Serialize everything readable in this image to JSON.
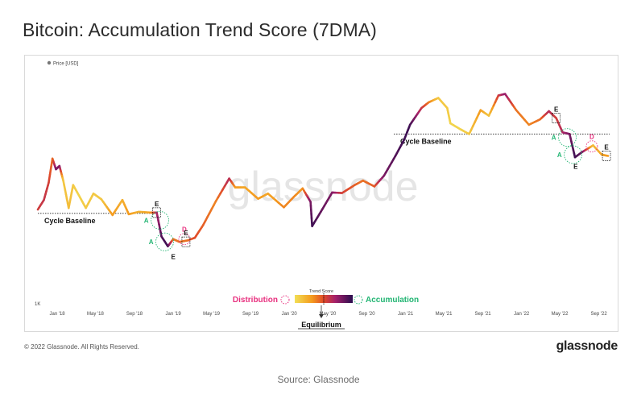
{
  "title": "Bitcoin: Accumulation Trend Score (7DMA)",
  "copyright": "© 2022 Glassnode. All Rights Reserved.",
  "brand": "glassnode",
  "source": "Source: Glassnode",
  "colors": {
    "accumulation": "#22b573",
    "distribution": "#e8317f",
    "scale": [
      "#e8c63a",
      "#f49a1e",
      "#e25a2a",
      "#a4206b",
      "#5a1270",
      "#2a0d4e"
    ]
  },
  "chart_data": {
    "type": "line",
    "title": "Bitcoin: Accumulation Trend Score (7DMA)",
    "legend": {
      "label": "Price [USD]",
      "marker_color": "#777777",
      "position": "top-left"
    },
    "x_tick_labels": [
      "Jan '18",
      "May '18",
      "Sep '18",
      "Jan '19",
      "May '19",
      "Sep '19",
      "Jan '20",
      "May '20",
      "Sep '20",
      "Jan '21",
      "May '21",
      "Sep '21",
      "Jan '22",
      "May '22",
      "Sep '22"
    ],
    "y_tick_labels": [
      "1K"
    ],
    "y_scale": "log",
    "xlim": [
      "2017-11-01",
      "2022-10-10"
    ],
    "ylim": [
      1000,
      90000
    ],
    "grid": false,
    "series": [
      {
        "name": "Price [USD]",
        "points": [
          [
            "2017-11-01",
            6800,
            0.55
          ],
          [
            "2017-11-20",
            8200,
            0.6
          ],
          [
            "2017-12-05",
            11500,
            0.55
          ],
          [
            "2017-12-17",
            18500,
            0.4
          ],
          [
            "2017-12-28",
            15000,
            0.8
          ],
          [
            "2018-01-08",
            16000,
            0.8
          ],
          [
            "2018-01-20",
            12000,
            0.1
          ],
          [
            "2018-02-06",
            7000,
            0.15
          ],
          [
            "2018-02-20",
            11000,
            0.1
          ],
          [
            "2018-03-10",
            9000,
            0.05
          ],
          [
            "2018-04-01",
            7000,
            0.1
          ],
          [
            "2018-04-25",
            9300,
            0.1
          ],
          [
            "2018-05-20",
            8300,
            0.1
          ],
          [
            "2018-06-24",
            6100,
            0.3
          ],
          [
            "2018-07-25",
            8200,
            0.2
          ],
          [
            "2018-08-14",
            6200,
            0.3
          ],
          [
            "2018-09-15",
            6500,
            0.2
          ],
          [
            "2018-10-20",
            6400,
            0.25
          ],
          [
            "2018-11-10",
            6400,
            0.65
          ],
          [
            "2018-11-25",
            4000,
            0.9
          ],
          [
            "2018-12-15",
            3300,
            0.95
          ],
          [
            "2019-01-01",
            3800,
            0.4
          ],
          [
            "2019-01-20",
            3600,
            0.4
          ],
          [
            "2019-02-15",
            3700,
            0.4
          ],
          [
            "2019-03-10",
            3900,
            0.5
          ],
          [
            "2019-04-05",
            5000,
            0.45
          ],
          [
            "2019-05-15",
            8000,
            0.35
          ],
          [
            "2019-06-26",
            12500,
            0.65
          ],
          [
            "2019-07-15",
            10500,
            0.3
          ],
          [
            "2019-08-15",
            10500,
            0.25
          ],
          [
            "2019-09-25",
            8400,
            0.3
          ],
          [
            "2019-10-26",
            9300,
            0.25
          ],
          [
            "2019-12-15",
            7100,
            0.35
          ],
          [
            "2020-01-15",
            8700,
            0.35
          ],
          [
            "2020-02-12",
            10300,
            0.3
          ],
          [
            "2020-03-08",
            7900,
            0.8
          ],
          [
            "2020-03-13",
            4900,
            0.95
          ],
          [
            "2020-04-15",
            6900,
            0.85
          ],
          [
            "2020-05-15",
            9500,
            0.8
          ],
          [
            "2020-06-15",
            9400,
            0.55
          ],
          [
            "2020-07-25",
            11000,
            0.45
          ],
          [
            "2020-08-20",
            12000,
            0.4
          ],
          [
            "2020-09-25",
            10700,
            0.45
          ],
          [
            "2020-10-25",
            13200,
            0.8
          ],
          [
            "2020-11-30",
            19500,
            0.9
          ],
          [
            "2020-12-28",
            27000,
            0.95
          ],
          [
            "2021-01-15",
            36000,
            0.95
          ],
          [
            "2021-02-20",
            50000,
            0.6
          ],
          [
            "2021-03-15",
            56000,
            0.4
          ],
          [
            "2021-04-14",
            61000,
            0.1
          ],
          [
            "2021-05-12",
            50000,
            0.1
          ],
          [
            "2021-05-22",
            37000,
            0.05
          ],
          [
            "2021-06-22",
            33000,
            0.05
          ],
          [
            "2021-07-20",
            30000,
            0.1
          ],
          [
            "2021-08-25",
            48000,
            0.3
          ],
          [
            "2021-09-20",
            43000,
            0.1
          ],
          [
            "2021-10-20",
            64000,
            0.55
          ],
          [
            "2021-11-10",
            66000,
            0.75
          ],
          [
            "2021-12-15",
            48000,
            0.4
          ],
          [
            "2022-01-24",
            36000,
            0.35
          ],
          [
            "2022-02-28",
            40000,
            0.4
          ],
          [
            "2022-03-28",
            47000,
            0.65
          ],
          [
            "2022-04-20",
            41000,
            0.55
          ],
          [
            "2022-05-10",
            31000,
            0.65
          ],
          [
            "2022-06-01",
            30000,
            0.8
          ],
          [
            "2022-06-18",
            19000,
            0.95
          ],
          [
            "2022-07-10",
            21000,
            0.85
          ],
          [
            "2022-08-14",
            24000,
            0.15
          ],
          [
            "2022-09-10",
            20000,
            0.25
          ],
          [
            "2022-09-30",
            19500,
            0.3
          ]
        ]
      }
    ],
    "baselines": [
      {
        "label": "Cycle Baseline",
        "y": 6300,
        "x_start": "2017-11-01",
        "x_end": "2018-11-10"
      },
      {
        "label": "Cycle Baseline",
        "y": 30000,
        "x_start": "2020-11-25",
        "x_end": "2022-10-05"
      }
    ],
    "annotations": [
      {
        "text": "E",
        "x": "2018-11-10",
        "y": 6400,
        "kind": "box"
      },
      {
        "text": "A",
        "x": "2018-11-20",
        "y": 5500,
        "kind": "accumulation"
      },
      {
        "text": "A",
        "x": "2018-12-05",
        "y": 3600,
        "kind": "accumulation"
      },
      {
        "text": "E",
        "x": "2019-01-01",
        "y": 3300,
        "kind": "plain"
      },
      {
        "text": "D",
        "x": "2019-02-05",
        "y": 3800,
        "kind": "distribution"
      },
      {
        "text": "E",
        "x": "2019-02-10",
        "y": 3600,
        "kind": "box"
      },
      {
        "text": "E",
        "x": "2022-04-20",
        "y": 41000,
        "kind": "box"
      },
      {
        "text": "A",
        "x": "2022-05-25",
        "y": 28000,
        "kind": "accumulation"
      },
      {
        "text": "A",
        "x": "2022-06-12",
        "y": 20000,
        "kind": "accumulation"
      },
      {
        "text": "E",
        "x": "2022-06-20",
        "y": 19500,
        "kind": "plain"
      },
      {
        "text": "D",
        "x": "2022-08-10",
        "y": 23500,
        "kind": "distribution"
      },
      {
        "text": "E",
        "x": "2022-09-25",
        "y": 19500,
        "kind": "box"
      }
    ],
    "trend_score_legend": {
      "title": "Trend Score",
      "left_label": "Distribution",
      "right_label": "Accumulation",
      "center_label": "Equilibrium"
    }
  }
}
